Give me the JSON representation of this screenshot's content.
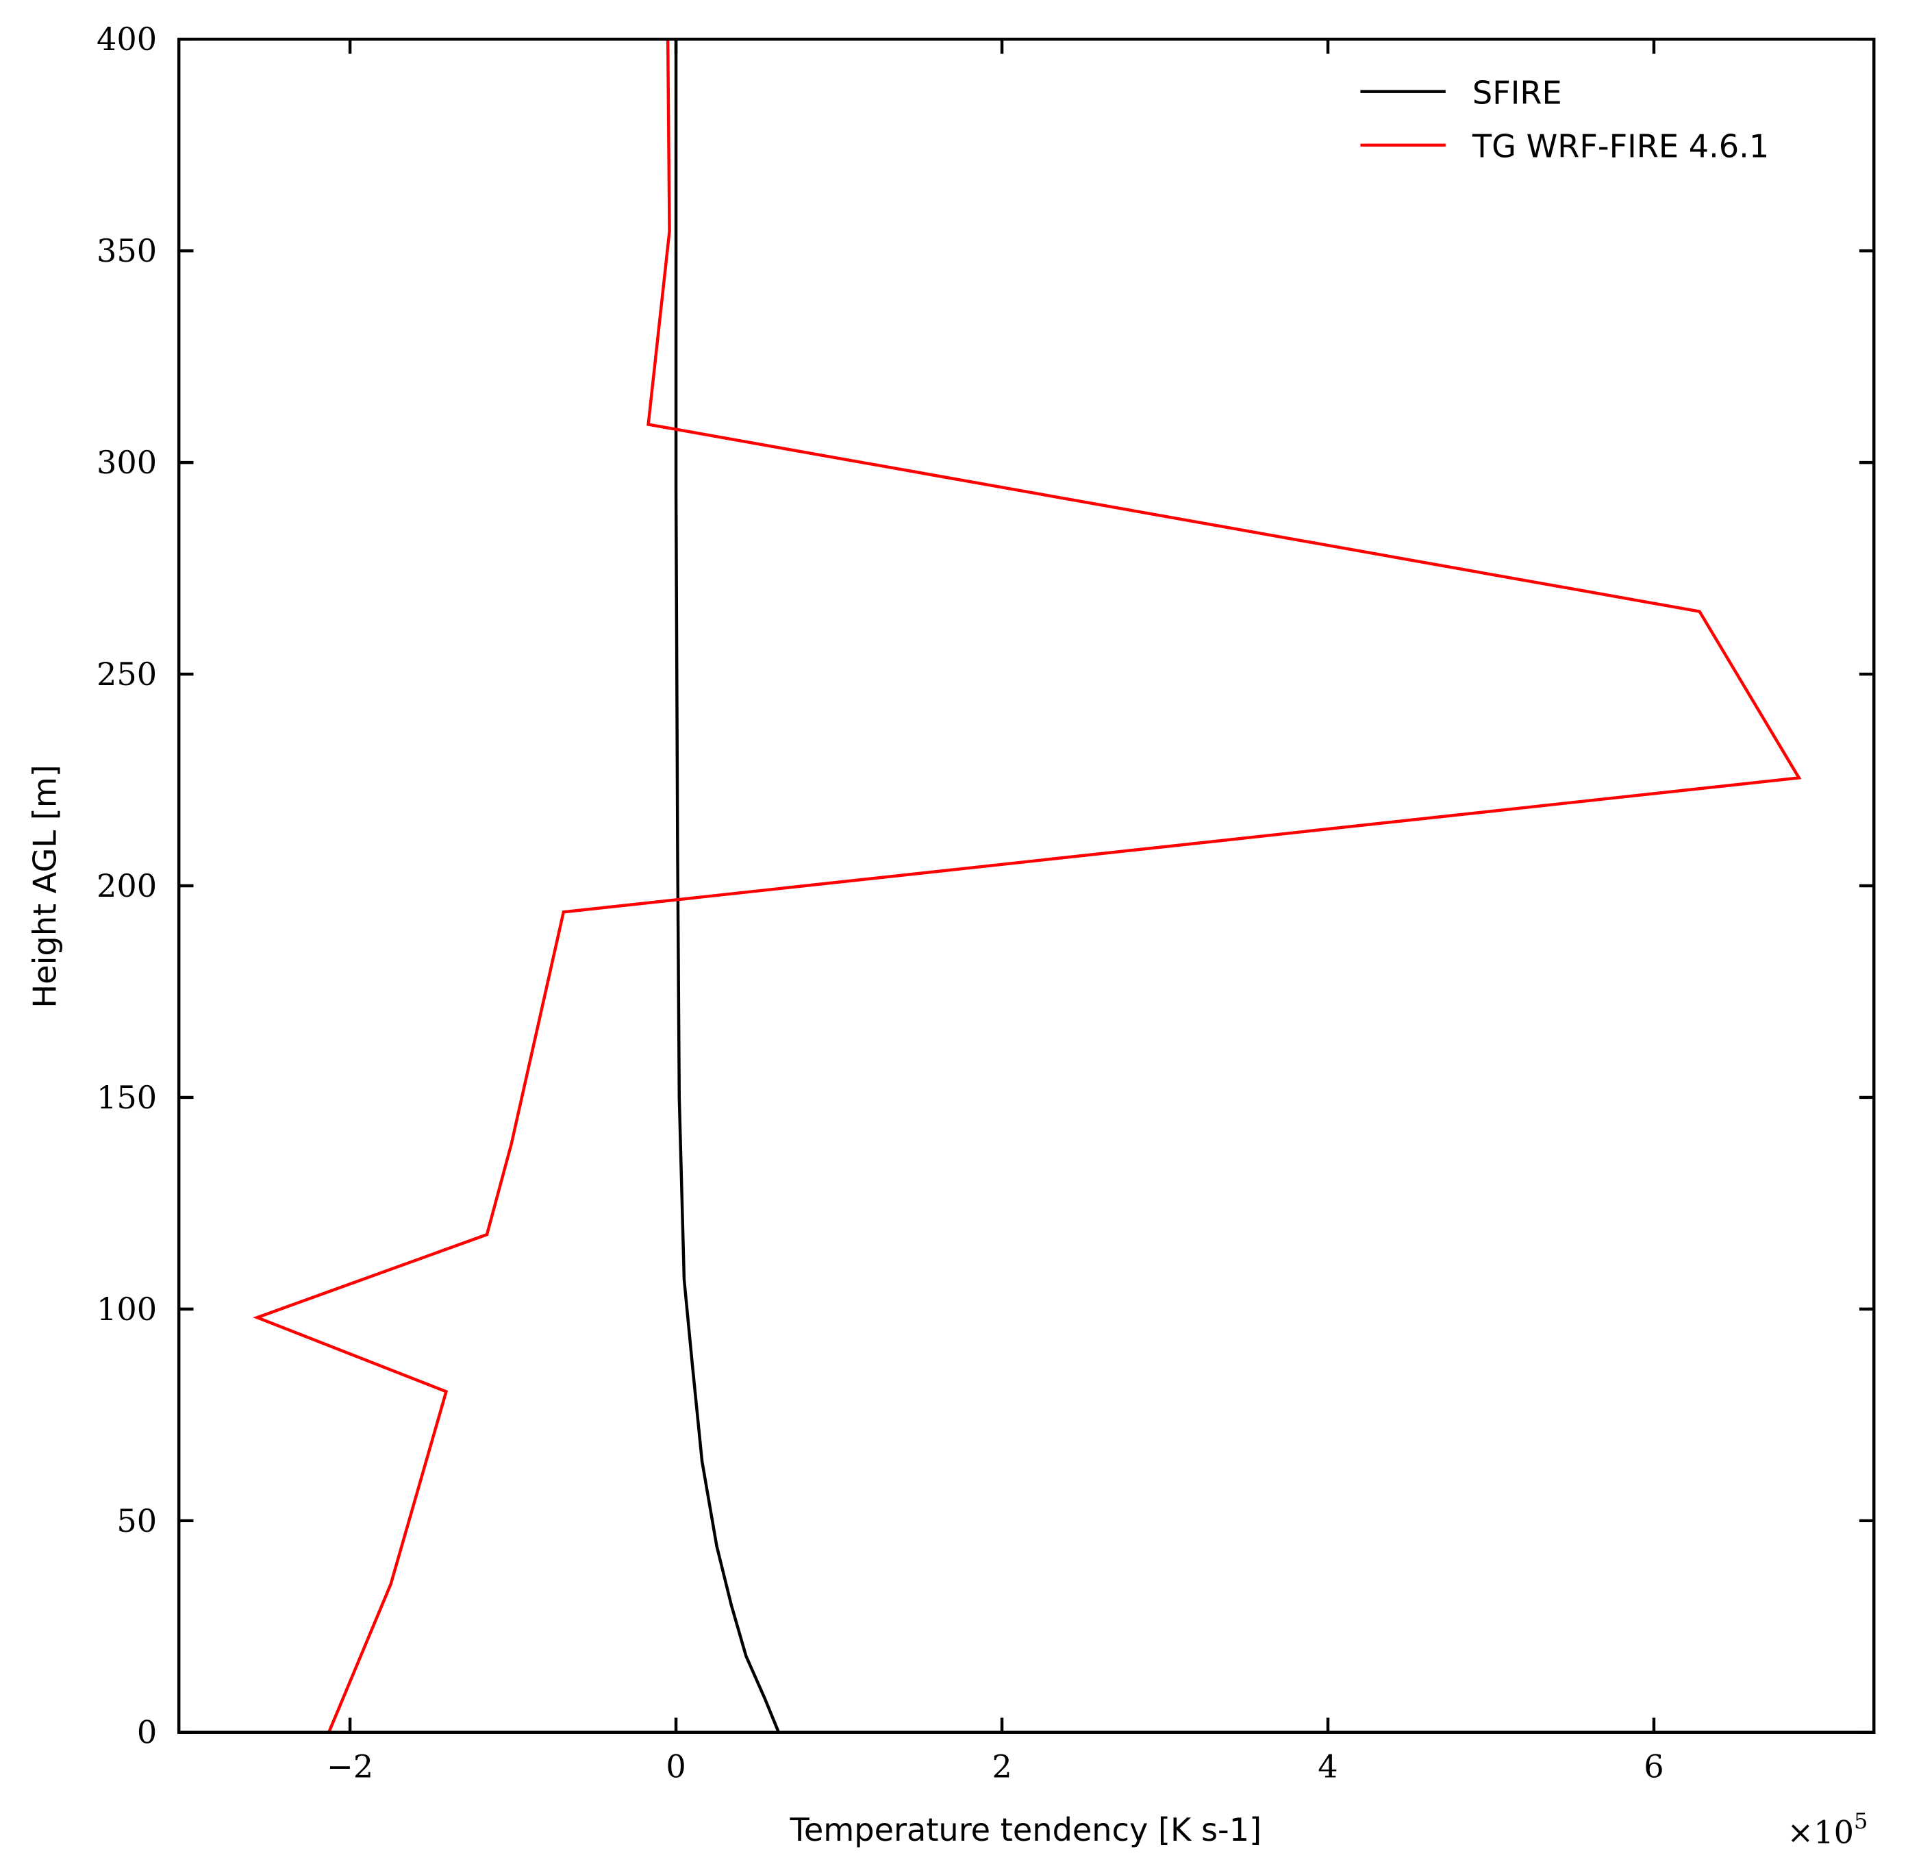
{
  "chart_data": {
    "type": "line",
    "x_label": "Temperature tendency [K s-1]",
    "y_label": "Height AGL [m]",
    "x_offset": {
      "base": "×10",
      "exponent": "5"
    },
    "series": [
      {
        "name": "SFIRE",
        "color": "#000000",
        "x": [
          0.63,
          0.545,
          0.43,
          0.34,
          0.25,
          0.16,
          0.1,
          0.05,
          0.02,
          0.01,
          0.0,
          0.0
        ],
        "values": [
          0,
          8,
          18,
          30,
          44,
          64,
          87,
          107,
          150,
          208,
          294,
          400
        ]
      },
      {
        "name": "TG WRF-FIRE 4.6.1",
        "color": "#ff0000",
        "x": [
          -2.13,
          -1.75,
          -1.41,
          -2.57,
          -1.16,
          -1.01,
          -0.69,
          6.89,
          6.28,
          -0.17,
          -0.04,
          -0.05
        ],
        "values": [
          0,
          35,
          80.5,
          98,
          117.6,
          139,
          193.8,
          225.5,
          264.8,
          309,
          354.6,
          400
        ]
      }
    ],
    "xlim": [
      -3.05,
      7.35
    ],
    "ylim": [
      0,
      400
    ],
    "xticks": [
      {
        "value": -2,
        "label": "−2"
      },
      0,
      2,
      4,
      6
    ],
    "yticks": [
      0,
      50,
      100,
      150,
      200,
      250,
      300,
      350,
      400
    ],
    "legend": "upper right",
    "grid": false
  }
}
